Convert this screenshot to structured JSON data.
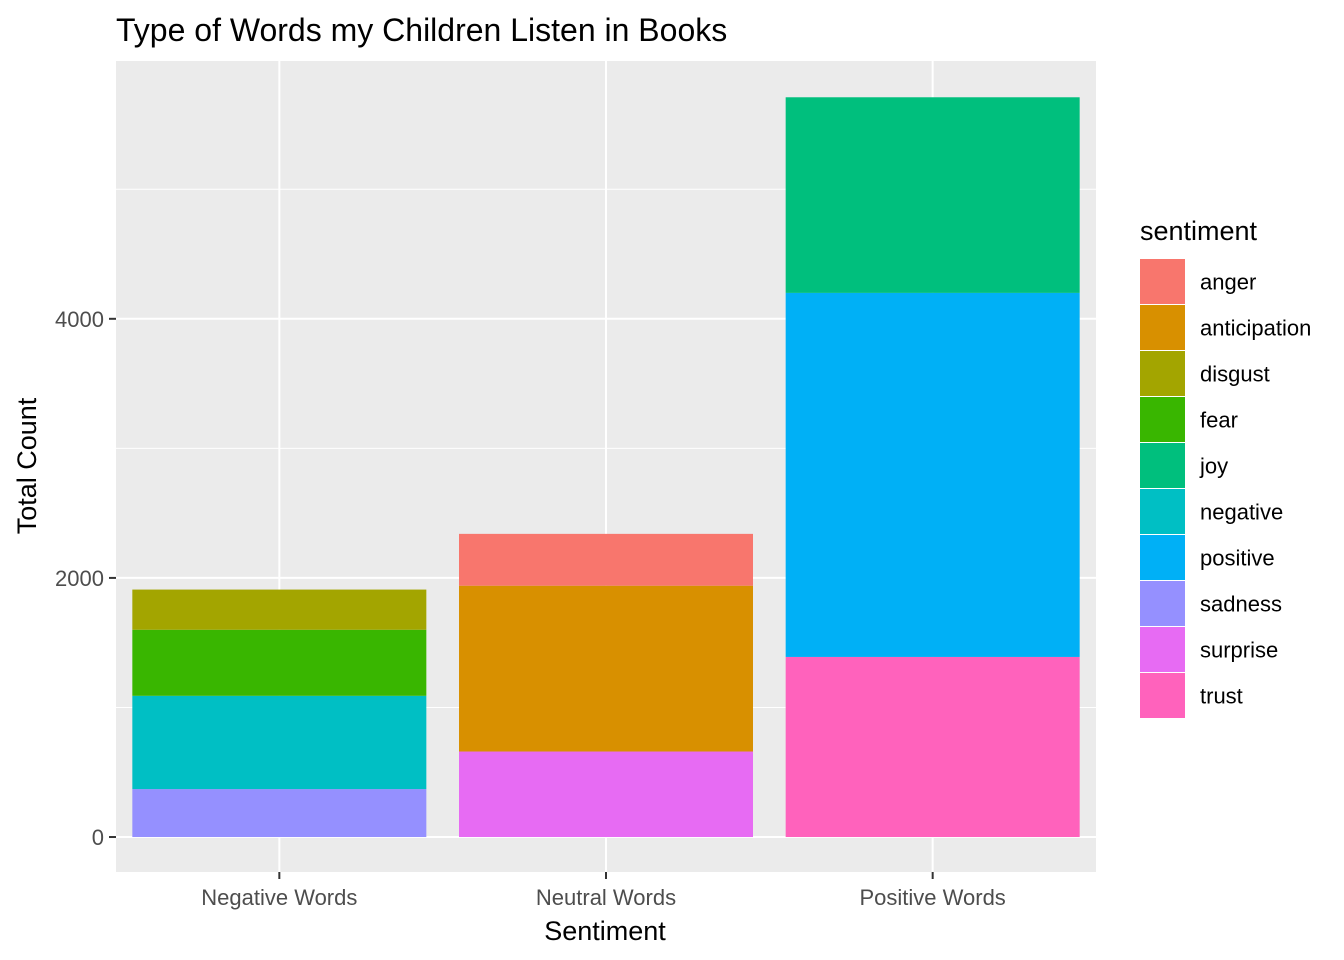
{
  "chart_data": {
    "type": "bar",
    "stacked": true,
    "title": "Type of Words my Children Listen in Books",
    "xlabel": "Sentiment",
    "ylabel": "Total Count",
    "categories": [
      "Negative Words",
      "Neutral Words",
      "Positive Words"
    ],
    "ylim": [
      -270,
      5990
    ],
    "yticks": [
      0,
      2000,
      4000
    ],
    "grid": true,
    "legend": {
      "title": "sentiment",
      "position": "right"
    },
    "series": [
      {
        "name": "anger",
        "color": "#F8766D",
        "values": [
          0,
          400,
          0
        ]
      },
      {
        "name": "anticipation",
        "color": "#D89000",
        "values": [
          0,
          1280,
          0
        ]
      },
      {
        "name": "disgust",
        "color": "#A3A500",
        "values": [
          310,
          0,
          0
        ]
      },
      {
        "name": "fear",
        "color": "#39B600",
        "values": [
          510,
          0,
          0
        ]
      },
      {
        "name": "joy",
        "color": "#00BF7D",
        "values": [
          0,
          0,
          1510
        ]
      },
      {
        "name": "negative",
        "color": "#00BFC4",
        "values": [
          720,
          0,
          0
        ]
      },
      {
        "name": "positive",
        "color": "#00B0F6",
        "values": [
          0,
          0,
          2810
        ]
      },
      {
        "name": "sadness",
        "color": "#9590FF",
        "values": [
          370,
          0,
          0
        ]
      },
      {
        "name": "surprise",
        "color": "#E76BF3",
        "values": [
          0,
          660,
          0
        ]
      },
      {
        "name": "trust",
        "color": "#FF62BC",
        "values": [
          0,
          0,
          1390
        ]
      }
    ]
  }
}
